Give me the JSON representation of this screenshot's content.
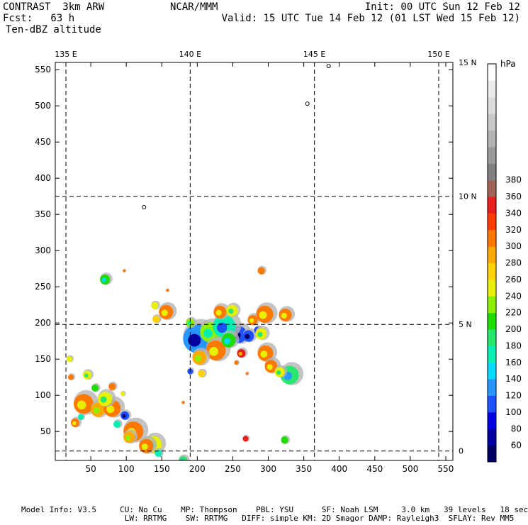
{
  "header": {
    "app": "CONTRAST  3km ARW",
    "center": "NCAR/MMM",
    "init": "Init: 00 UTC Sun 12 Feb 12",
    "fcst": "Fcst:   63 h",
    "valid": "Valid: 15 UTC Tue 14 Feb 12 (01 LST Wed 15 Feb 12)",
    "field": "Ten-dBZ altitude"
  },
  "footer": {
    "line1": "Model Info: V3.5     CU: No Cu    MP: Thompson    PBL: YSU      SF: Noah LSM     3.0 km   39 levels   18 sec",
    "line2": "                      LW: RRTMG    SW: RRTMG   DIFF: simple KM: 2D Smagor DAMP: Rayleigh3  SFLAY: Rev MM5"
  },
  "chart_data": {
    "type": "heatmap",
    "title": "Ten-dBZ altitude",
    "xlim": [
      0,
      560
    ],
    "ylim": [
      10,
      560
    ],
    "x_ticks": [
      50,
      100,
      150,
      200,
      250,
      300,
      350,
      400,
      450,
      500,
      550
    ],
    "y_ticks": [
      50,
      100,
      150,
      200,
      250,
      300,
      350,
      400,
      450,
      500,
      550
    ],
    "grid": true,
    "longitudes": [
      {
        "label": "135 E",
        "x": 15
      },
      {
        "label": "140 E",
        "x": 190
      },
      {
        "label": "145 E",
        "x": 365
      },
      {
        "label": "150 E",
        "x": 540
      }
    ],
    "latitudes": [
      {
        "label": "15 N",
        "y": 560
      },
      {
        "label": "10 N",
        "y": 375
      },
      {
        "label": "5 N",
        "y": 198
      },
      {
        "label": "0",
        "y": 23
      }
    ],
    "colorbar": {
      "unit": "hPa",
      "levels": [
        60,
        80,
        100,
        120,
        140,
        160,
        180,
        200,
        220,
        240,
        260,
        280,
        300,
        320,
        340,
        360,
        380
      ],
      "colors": [
        "#000064",
        "#0000a0",
        "#0000e6",
        "#1e50ff",
        "#2896ff",
        "#00dcff",
        "#00f0b4",
        "#28e66e",
        "#1edc00",
        "#8cf000",
        "#e6f000",
        "#ffd200",
        "#ffaa00",
        "#ff7800",
        "#ff3c00",
        "#e61e1e",
        "#a0645a",
        "#828282",
        "#9b9b9b",
        "#b4b4b4",
        "#c8c8c8",
        "#dcdcdc",
        "#ebebeb",
        "#ffffff"
      ]
    },
    "cells": [
      {
        "x": 200,
        "y": 178,
        "r": 20,
        "v": 120
      },
      {
        "x": 258,
        "y": 184,
        "r": 12,
        "v": 100
      },
      {
        "x": 218,
        "y": 187,
        "r": 14,
        "v": 220
      },
      {
        "x": 238,
        "y": 195,
        "r": 16,
        "v": 160
      },
      {
        "x": 226,
        "y": 162,
        "r": 14,
        "v": 300
      },
      {
        "x": 244,
        "y": 176,
        "r": 10,
        "v": 200
      },
      {
        "x": 203,
        "y": 152,
        "r": 10,
        "v": 280
      },
      {
        "x": 232,
        "y": 215,
        "r": 9,
        "v": 300
      },
      {
        "x": 249,
        "y": 217,
        "r": 8,
        "v": 240
      },
      {
        "x": 272,
        "y": 182,
        "r": 8,
        "v": 110
      },
      {
        "x": 278,
        "y": 204,
        "r": 7,
        "v": 300
      },
      {
        "x": 262,
        "y": 158,
        "r": 6,
        "v": 340
      },
      {
        "x": 190,
        "y": 200,
        "r": 6,
        "v": 220
      },
      {
        "x": 285,
        "y": 190,
        "r": 5,
        "v": 100
      },
      {
        "x": 295,
        "y": 212,
        "r": 12,
        "v": 300
      },
      {
        "x": 290,
        "y": 185,
        "r": 8,
        "v": 240
      },
      {
        "x": 324,
        "y": 211,
        "r": 9,
        "v": 300
      },
      {
        "x": 296,
        "y": 158,
        "r": 11,
        "v": 300
      },
      {
        "x": 304,
        "y": 140,
        "r": 9,
        "v": 300
      },
      {
        "x": 330,
        "y": 128,
        "r": 13,
        "v": 180
      },
      {
        "x": 316,
        "y": 132,
        "r": 7,
        "v": 240
      },
      {
        "x": 206,
        "y": 130,
        "r": 5,
        "v": 260
      },
      {
        "x": 190,
        "y": 133,
        "r": 4,
        "v": 100
      },
      {
        "x": 156,
        "y": 215,
        "r": 10,
        "v": 300
      },
      {
        "x": 140,
        "y": 224,
        "r": 5,
        "v": 240
      },
      {
        "x": 142,
        "y": 205,
        "r": 5,
        "v": 260
      },
      {
        "x": 70,
        "y": 260,
        "r": 7,
        "v": 200
      },
      {
        "x": 158,
        "y": 245,
        "r": 2,
        "v": 300
      },
      {
        "x": 97,
        "y": 272,
        "r": 2,
        "v": 300
      },
      {
        "x": 290,
        "y": 272,
        "r": 5,
        "v": 300
      },
      {
        "x": 40,
        "y": 88,
        "r": 14,
        "v": 300
      },
      {
        "x": 60,
        "y": 80,
        "r": 10,
        "v": 280
      },
      {
        "x": 80,
        "y": 82,
        "r": 12,
        "v": 300
      },
      {
        "x": 70,
        "y": 95,
        "r": 10,
        "v": 240
      },
      {
        "x": 56,
        "y": 110,
        "r": 5,
        "v": 200
      },
      {
        "x": 80,
        "y": 112,
        "r": 5,
        "v": 300
      },
      {
        "x": 98,
        "y": 72,
        "r": 6,
        "v": 110
      },
      {
        "x": 87,
        "y": 60,
        "r": 5,
        "v": 160
      },
      {
        "x": 45,
        "y": 128,
        "r": 6,
        "v": 240
      },
      {
        "x": 110,
        "y": 50,
        "r": 14,
        "v": 300
      },
      {
        "x": 138,
        "y": 32,
        "r": 12,
        "v": 240
      },
      {
        "x": 128,
        "y": 30,
        "r": 10,
        "v": 300
      },
      {
        "x": 104,
        "y": 42,
        "r": 8,
        "v": 280
      },
      {
        "x": 145,
        "y": 20,
        "r": 5,
        "v": 160
      },
      {
        "x": 180,
        "y": 10,
        "r": 6,
        "v": 180
      },
      {
        "x": 28,
        "y": 62,
        "r": 6,
        "v": 300
      },
      {
        "x": 36,
        "y": 70,
        "r": 4,
        "v": 160
      },
      {
        "x": 20,
        "y": 150,
        "r": 4,
        "v": 240
      },
      {
        "x": 22,
        "y": 125,
        "r": 4,
        "v": 300
      },
      {
        "x": 95,
        "y": 102,
        "r": 3,
        "v": 240
      },
      {
        "x": 323,
        "y": 38,
        "r": 5,
        "v": 200
      },
      {
        "x": 270,
        "y": 130,
        "r": 2,
        "v": 300
      },
      {
        "x": 268,
        "y": 40,
        "r": 4,
        "v": 340
      },
      {
        "x": 255,
        "y": 145,
        "r": 3,
        "v": 300
      },
      {
        "x": 180,
        "y": 90,
        "r": 2,
        "v": 300
      }
    ],
    "land": [
      {
        "x": 355,
        "y": 503
      },
      {
        "x": 125,
        "y": 360
      },
      {
        "x": 385,
        "y": 555
      }
    ]
  }
}
